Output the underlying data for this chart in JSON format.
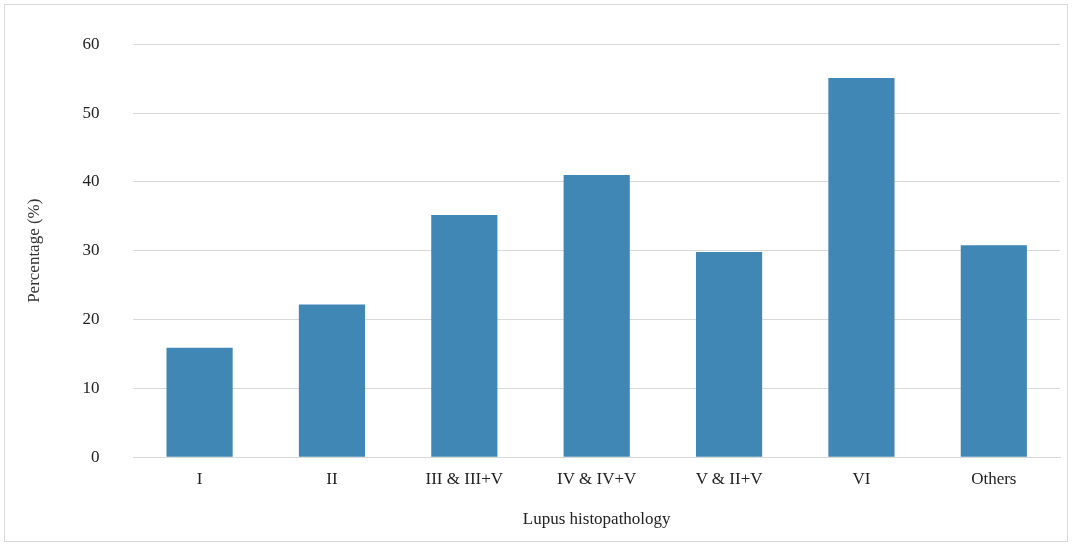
{
  "chart_data": {
    "type": "bar",
    "xlabel": "Lupus histopathology",
    "ylabel": "Percentage (%)",
    "categories": [
      "I",
      "II",
      "III & III+V",
      "IV & IV+V",
      "V & II+V",
      "VI",
      "Others"
    ],
    "values": [
      15.9,
      22.2,
      35.2,
      41.0,
      29.8,
      55.1,
      30.8
    ],
    "color": "#4087b5",
    "ylim": [
      0,
      60
    ],
    "yticks": [
      0,
      10,
      20,
      30,
      40,
      50,
      60
    ],
    "grid": "y",
    "legend": false
  }
}
